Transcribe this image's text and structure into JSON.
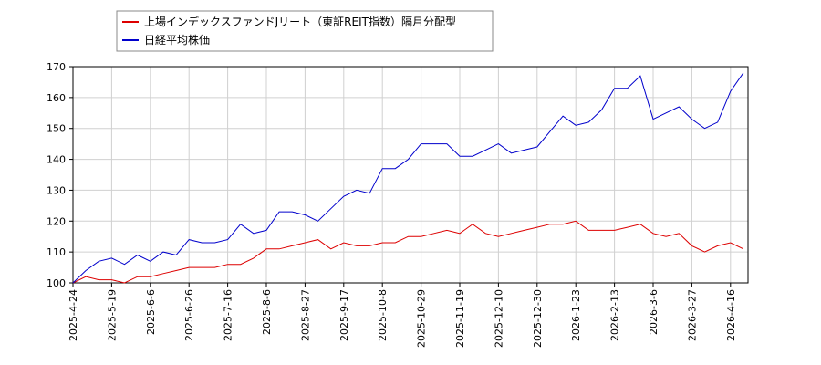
{
  "chart_data": {
    "type": "line",
    "categories": [
      "2025-4-24",
      null,
      null,
      "2025-5-19",
      null,
      null,
      "2025-6-6",
      null,
      null,
      "2025-6-26",
      null,
      null,
      "2025-7-16",
      null,
      null,
      "2025-8-6",
      null,
      null,
      "2025-8-27",
      null,
      null,
      "2025-9-17",
      null,
      null,
      "2025-10-8",
      null,
      null,
      "2025-10-29",
      null,
      null,
      "2025-11-19",
      null,
      null,
      "2025-12-10",
      null,
      null,
      "2025-12-30",
      null,
      null,
      "2026-1-23",
      null,
      null,
      "2026-2-13",
      null,
      null,
      "2026-3-6",
      null,
      null,
      "2026-3-27",
      null,
      null,
      "2026-4-16",
      null
    ],
    "series": [
      {
        "name": "上場インデックスファンドJリート（東証REIT指数）隔月分配型",
        "color": "#dd0000",
        "values": [
          100,
          102,
          101,
          101,
          100,
          102,
          102,
          103,
          104,
          105,
          105,
          105,
          106,
          106,
          108,
          111,
          111,
          112,
          113,
          114,
          111,
          113,
          112,
          112,
          113,
          113,
          115,
          115,
          116,
          117,
          116,
          119,
          116,
          115,
          116,
          117,
          118,
          119,
          119,
          120,
          117,
          117,
          117,
          118,
          119,
          116,
          115,
          116,
          112,
          110,
          112,
          113,
          111
        ]
      },
      {
        "name": "日経平均株価",
        "color": "#0000cc",
        "values": [
          100,
          104,
          107,
          108,
          106,
          109,
          107,
          110,
          109,
          114,
          113,
          113,
          114,
          119,
          116,
          117,
          123,
          123,
          122,
          120,
          124,
          128,
          130,
          129,
          137,
          137,
          140,
          145,
          145,
          145,
          141,
          141,
          143,
          145,
          142,
          143,
          144,
          149,
          154,
          151,
          152,
          156,
          163,
          163,
          167,
          153,
          155,
          157,
          153,
          150,
          152,
          162,
          168
        ]
      }
    ],
    "ylim": [
      100,
      170
    ],
    "yticks": [
      100,
      110,
      120,
      130,
      140,
      150,
      160,
      170
    ],
    "grid": true
  }
}
